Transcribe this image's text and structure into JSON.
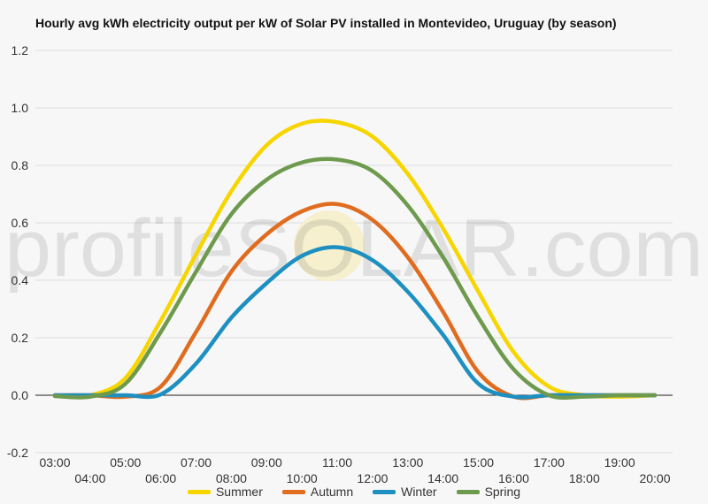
{
  "chart_data": {
    "type": "line",
    "title": "Hourly avg kWh electricity output per kW of Solar PV installed in Montevideo, Uruguay (by season)",
    "xlabel": "",
    "ylabel": "",
    "x": [
      "03:00",
      "04:00",
      "05:00",
      "06:00",
      "07:00",
      "08:00",
      "09:00",
      "10:00",
      "11:00",
      "12:00",
      "13:00",
      "14:00",
      "15:00",
      "16:00",
      "17:00",
      "18:00",
      "19:00",
      "20:00"
    ],
    "ylim": [
      -0.2,
      1.2
    ],
    "yticks": [
      "-0.2",
      "0.0",
      "0.2",
      "0.4",
      "0.6",
      "0.8",
      "1.0",
      "1.2"
    ],
    "grid": true,
    "legend": "bottom",
    "watermark": "profileSOLAR.com",
    "series": [
      {
        "name": "Summer",
        "color": "#f7d500",
        "values": [
          0.0,
          0.0,
          0.06,
          0.26,
          0.49,
          0.71,
          0.87,
          0.945,
          0.95,
          0.9,
          0.77,
          0.58,
          0.36,
          0.15,
          0.03,
          0.0,
          -0.005,
          0.0
        ]
      },
      {
        "name": "Autumn",
        "color": "#e06c1f",
        "values": [
          0.0,
          0.0,
          -0.005,
          0.03,
          0.22,
          0.43,
          0.56,
          0.64,
          0.665,
          0.61,
          0.48,
          0.29,
          0.08,
          -0.005,
          0.0,
          0.0,
          0.0,
          0.0
        ]
      },
      {
        "name": "Winter",
        "color": "#1d8fc0",
        "values": [
          0.0,
          0.0,
          0.0,
          0.003,
          0.11,
          0.27,
          0.39,
          0.485,
          0.515,
          0.47,
          0.36,
          0.21,
          0.04,
          -0.005,
          0.0,
          0.0,
          0.0,
          0.0
        ]
      },
      {
        "name": "Spring",
        "color": "#6e9a4e",
        "values": [
          -0.003,
          -0.005,
          0.04,
          0.22,
          0.43,
          0.63,
          0.75,
          0.81,
          0.82,
          0.78,
          0.66,
          0.48,
          0.27,
          0.09,
          0.0,
          -0.005,
          0.0,
          0.0
        ]
      }
    ]
  }
}
